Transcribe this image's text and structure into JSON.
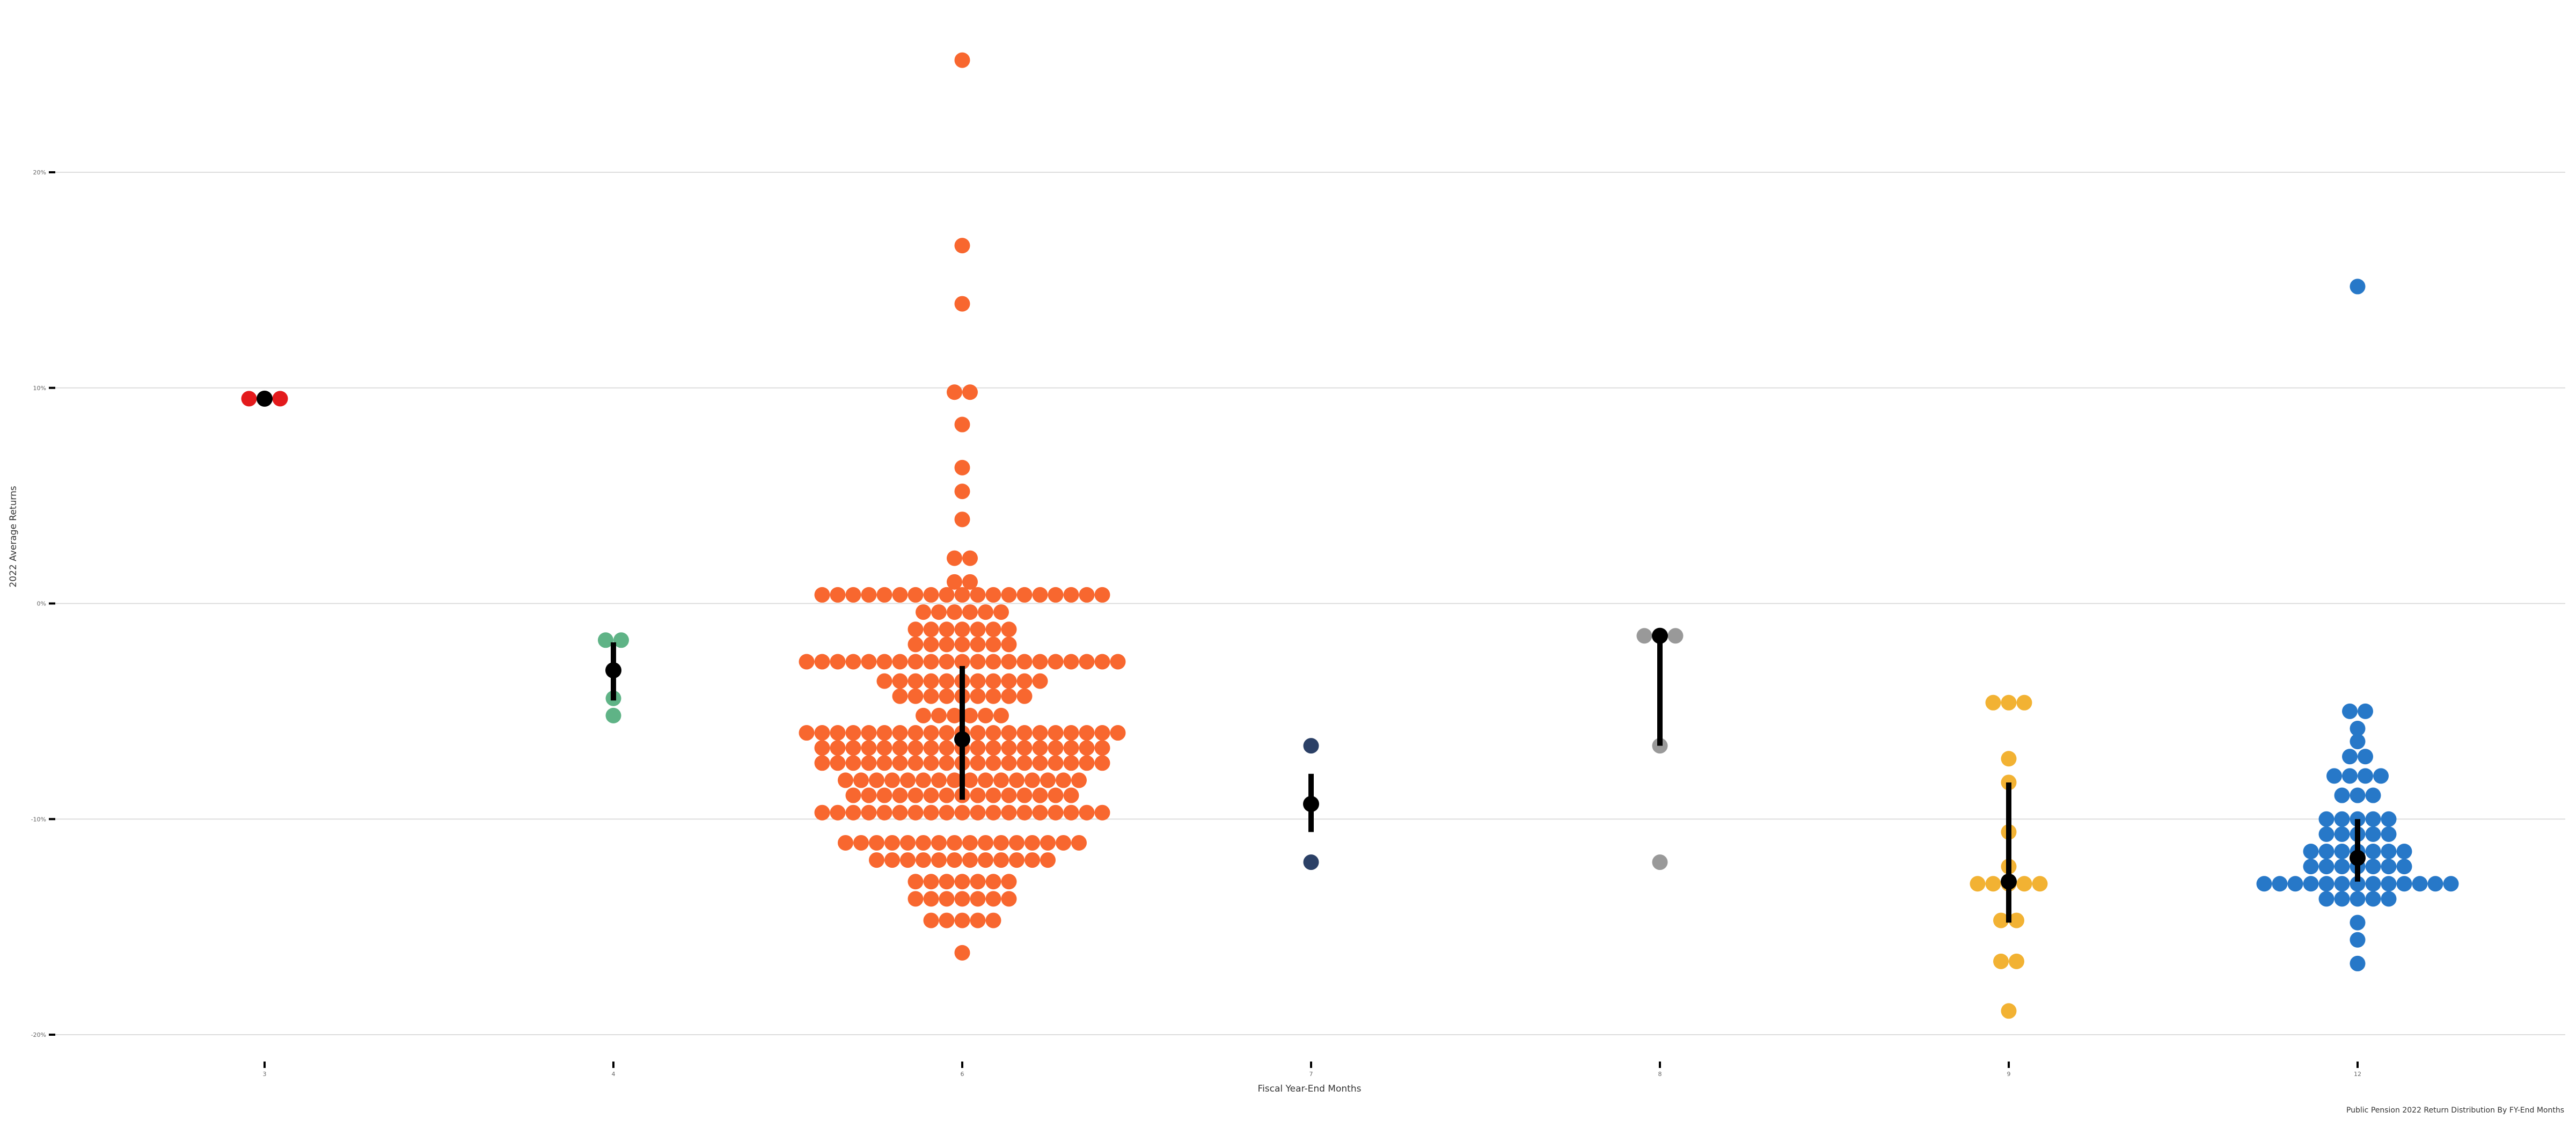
{
  "chart_data": {
    "type": "scatter",
    "subtype": "beeswarm",
    "title": "",
    "caption": "Public Pension 2022 Return Distribution By FY-End Months",
    "xlabel": "Fiscal Year-End Months",
    "ylabel": "2022 Average Returns",
    "ylim": [
      -0.2,
      0.3
    ],
    "y_ticks": [
      -0.2,
      -0.1,
      0,
      0.1,
      0.2
    ],
    "y_tick_labels": [
      "-20%",
      "-10%",
      "0%",
      "10%",
      "20%"
    ],
    "categories": [
      "3",
      "4",
      "6",
      "7",
      "8",
      "9",
      "12"
    ],
    "grid": "horizontal major",
    "legend": "none",
    "series": [
      {
        "category": "3",
        "color": "#e31a1c",
        "mean": 0.095,
        "interval": [
          0.095,
          0.095
        ],
        "values": [
          0.095,
          0.095,
          0.095
        ]
      },
      {
        "category": "4",
        "color": "#5fb386",
        "mean": -0.031,
        "interval": [
          -0.045,
          -0.018
        ],
        "values": [
          -0.017,
          -0.017,
          -0.044,
          -0.052
        ]
      },
      {
        "category": "6",
        "color": "#f8672f",
        "mean": -0.063,
        "interval": [
          -0.091,
          -0.029
        ],
        "values": [
          0.252,
          0.166,
          0.139,
          0.098,
          0.098,
          0.083,
          0.063,
          0.052,
          0.039,
          0.021,
          0.021,
          0.01,
          0.01,
          0.004,
          0.004,
          0.004,
          0.004,
          0.004,
          0.004,
          0.004,
          0.004,
          0.004,
          0.004,
          0.004,
          0.004,
          0.004,
          0.004,
          0.004,
          0.004,
          0.004,
          0.004,
          0.004,
          -0.004,
          -0.004,
          -0.004,
          -0.004,
          -0.004,
          -0.004,
          -0.012,
          -0.012,
          -0.012,
          -0.012,
          -0.012,
          -0.012,
          -0.012,
          -0.019,
          -0.019,
          -0.019,
          -0.019,
          -0.019,
          -0.019,
          -0.019,
          -0.027,
          -0.027,
          -0.027,
          -0.027,
          -0.027,
          -0.027,
          -0.027,
          -0.027,
          -0.027,
          -0.027,
          -0.027,
          -0.027,
          -0.027,
          -0.027,
          -0.027,
          -0.027,
          -0.027,
          -0.027,
          -0.027,
          -0.027,
          -0.027,
          -0.036,
          -0.036,
          -0.036,
          -0.036,
          -0.036,
          -0.036,
          -0.036,
          -0.036,
          -0.036,
          -0.036,
          -0.036,
          -0.043,
          -0.043,
          -0.043,
          -0.043,
          -0.043,
          -0.043,
          -0.043,
          -0.043,
          -0.043,
          -0.052,
          -0.052,
          -0.052,
          -0.052,
          -0.052,
          -0.052,
          -0.06,
          -0.06,
          -0.06,
          -0.06,
          -0.06,
          -0.06,
          -0.06,
          -0.06,
          -0.06,
          -0.06,
          -0.06,
          -0.06,
          -0.06,
          -0.06,
          -0.06,
          -0.06,
          -0.06,
          -0.06,
          -0.06,
          -0.06,
          -0.06,
          -0.067,
          -0.067,
          -0.067,
          -0.067,
          -0.067,
          -0.067,
          -0.067,
          -0.067,
          -0.067,
          -0.067,
          -0.067,
          -0.067,
          -0.067,
          -0.067,
          -0.067,
          -0.067,
          -0.067,
          -0.067,
          -0.067,
          -0.074,
          -0.074,
          -0.074,
          -0.074,
          -0.074,
          -0.074,
          -0.074,
          -0.074,
          -0.074,
          -0.074,
          -0.074,
          -0.074,
          -0.074,
          -0.074,
          -0.074,
          -0.074,
          -0.074,
          -0.074,
          -0.074,
          -0.082,
          -0.082,
          -0.082,
          -0.082,
          -0.082,
          -0.082,
          -0.082,
          -0.082,
          -0.082,
          -0.082,
          -0.082,
          -0.082,
          -0.082,
          -0.082,
          -0.082,
          -0.082,
          -0.089,
          -0.089,
          -0.089,
          -0.089,
          -0.089,
          -0.089,
          -0.089,
          -0.089,
          -0.089,
          -0.089,
          -0.089,
          -0.089,
          -0.089,
          -0.089,
          -0.089,
          -0.097,
          -0.097,
          -0.097,
          -0.097,
          -0.097,
          -0.097,
          -0.097,
          -0.097,
          -0.097,
          -0.097,
          -0.097,
          -0.097,
          -0.097,
          -0.097,
          -0.097,
          -0.097,
          -0.097,
          -0.097,
          -0.097,
          -0.111,
          -0.111,
          -0.111,
          -0.111,
          -0.111,
          -0.111,
          -0.111,
          -0.111,
          -0.111,
          -0.111,
          -0.111,
          -0.111,
          -0.111,
          -0.111,
          -0.111,
          -0.111,
          -0.119,
          -0.119,
          -0.119,
          -0.119,
          -0.119,
          -0.119,
          -0.119,
          -0.119,
          -0.119,
          -0.119,
          -0.119,
          -0.119,
          -0.129,
          -0.129,
          -0.129,
          -0.129,
          -0.129,
          -0.129,
          -0.129,
          -0.137,
          -0.137,
          -0.137,
          -0.137,
          -0.137,
          -0.137,
          -0.137,
          -0.147,
          -0.147,
          -0.147,
          -0.147,
          -0.147,
          -0.162
        ]
      },
      {
        "category": "7",
        "color": "#2b4066",
        "mean": -0.093,
        "interval": [
          -0.106,
          -0.079
        ],
        "values": [
          -0.066,
          -0.12
        ]
      },
      {
        "category": "8",
        "color": "#999999",
        "mean": -0.015,
        "interval": [
          -0.066,
          -0.015
        ],
        "values": [
          -0.015,
          -0.015,
          -0.015,
          -0.066,
          -0.12
        ]
      },
      {
        "category": "9",
        "color": "#f2b233",
        "mean": -0.129,
        "interval": [
          -0.148,
          -0.083
        ],
        "values": [
          -0.046,
          -0.046,
          -0.046,
          -0.072,
          -0.083,
          -0.106,
          -0.122,
          -0.13,
          -0.13,
          -0.13,
          -0.13,
          -0.13,
          -0.147,
          -0.147,
          -0.166,
          -0.166,
          -0.189
        ]
      },
      {
        "category": "12",
        "color": "#2778c8",
        "mean": -0.118,
        "interval": [
          -0.129,
          -0.1
        ],
        "values": [
          0.147,
          -0.05,
          -0.05,
          -0.058,
          -0.064,
          -0.071,
          -0.071,
          -0.08,
          -0.08,
          -0.08,
          -0.08,
          -0.089,
          -0.089,
          -0.089,
          -0.1,
          -0.1,
          -0.1,
          -0.1,
          -0.1,
          -0.107,
          -0.107,
          -0.107,
          -0.107,
          -0.107,
          -0.115,
          -0.115,
          -0.115,
          -0.115,
          -0.115,
          -0.115,
          -0.115,
          -0.122,
          -0.122,
          -0.122,
          -0.122,
          -0.122,
          -0.122,
          -0.122,
          -0.13,
          -0.13,
          -0.13,
          -0.13,
          -0.13,
          -0.13,
          -0.13,
          -0.13,
          -0.13,
          -0.13,
          -0.13,
          -0.13,
          -0.13,
          -0.137,
          -0.137,
          -0.137,
          -0.137,
          -0.137,
          -0.148,
          -0.156,
          -0.167
        ]
      }
    ]
  }
}
